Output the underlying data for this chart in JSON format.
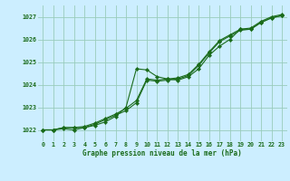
{
  "title": "Graphe pression niveau de la mer (hPa)",
  "bg_color": "#cceeff",
  "grid_color": "#99ccbb",
  "line_color": "#1a6b1a",
  "xlim": [
    -0.5,
    23.5
  ],
  "ylim": [
    1021.5,
    1027.5
  ],
  "yticks": [
    1022,
    1023,
    1024,
    1025,
    1026,
    1027
  ],
  "xticks": [
    0,
    1,
    2,
    3,
    4,
    5,
    6,
    7,
    8,
    9,
    10,
    11,
    12,
    13,
    14,
    15,
    16,
    17,
    18,
    19,
    20,
    21,
    22,
    23
  ],
  "series1": [
    [
      0,
      1022.0
    ],
    [
      1,
      1022.0
    ],
    [
      2,
      1022.05
    ],
    [
      3,
      1022.0
    ],
    [
      4,
      1022.1
    ],
    [
      5,
      1022.2
    ],
    [
      6,
      1022.35
    ],
    [
      7,
      1022.6
    ],
    [
      8,
      1023.0
    ],
    [
      9,
      1024.7
    ],
    [
      10,
      1024.65
    ],
    [
      11,
      1024.35
    ],
    [
      12,
      1024.25
    ],
    [
      13,
      1024.2
    ],
    [
      14,
      1024.35
    ],
    [
      15,
      1024.7
    ],
    [
      16,
      1025.3
    ],
    [
      17,
      1025.7
    ],
    [
      18,
      1026.0
    ],
    [
      19,
      1026.45
    ],
    [
      20,
      1026.45
    ],
    [
      21,
      1026.75
    ],
    [
      22,
      1026.95
    ],
    [
      23,
      1027.05
    ]
  ],
  "series2": [
    [
      0,
      1022.0
    ],
    [
      1,
      1022.0
    ],
    [
      2,
      1022.1
    ],
    [
      3,
      1022.1
    ],
    [
      4,
      1022.15
    ],
    [
      5,
      1022.3
    ],
    [
      6,
      1022.5
    ],
    [
      7,
      1022.7
    ],
    [
      8,
      1022.95
    ],
    [
      9,
      1023.3
    ],
    [
      10,
      1024.25
    ],
    [
      11,
      1024.2
    ],
    [
      12,
      1024.25
    ],
    [
      13,
      1024.3
    ],
    [
      14,
      1024.45
    ],
    [
      15,
      1024.9
    ],
    [
      16,
      1025.45
    ],
    [
      17,
      1025.95
    ],
    [
      18,
      1026.2
    ],
    [
      19,
      1026.45
    ],
    [
      20,
      1026.5
    ],
    [
      21,
      1026.8
    ],
    [
      22,
      1027.0
    ],
    [
      23,
      1027.1
    ]
  ],
  "series3": [
    [
      0,
      1022.0
    ],
    [
      1,
      1022.0
    ],
    [
      2,
      1022.1
    ],
    [
      3,
      1022.1
    ],
    [
      4,
      1022.1
    ],
    [
      5,
      1022.25
    ],
    [
      6,
      1022.45
    ],
    [
      7,
      1022.65
    ],
    [
      8,
      1022.85
    ],
    [
      9,
      1023.2
    ],
    [
      10,
      1024.2
    ],
    [
      11,
      1024.15
    ],
    [
      12,
      1024.2
    ],
    [
      13,
      1024.25
    ],
    [
      14,
      1024.4
    ],
    [
      15,
      1024.85
    ],
    [
      16,
      1025.4
    ],
    [
      17,
      1025.9
    ],
    [
      18,
      1026.15
    ],
    [
      19,
      1026.4
    ],
    [
      20,
      1026.45
    ],
    [
      21,
      1026.75
    ],
    [
      22,
      1026.95
    ],
    [
      23,
      1027.05
    ]
  ]
}
